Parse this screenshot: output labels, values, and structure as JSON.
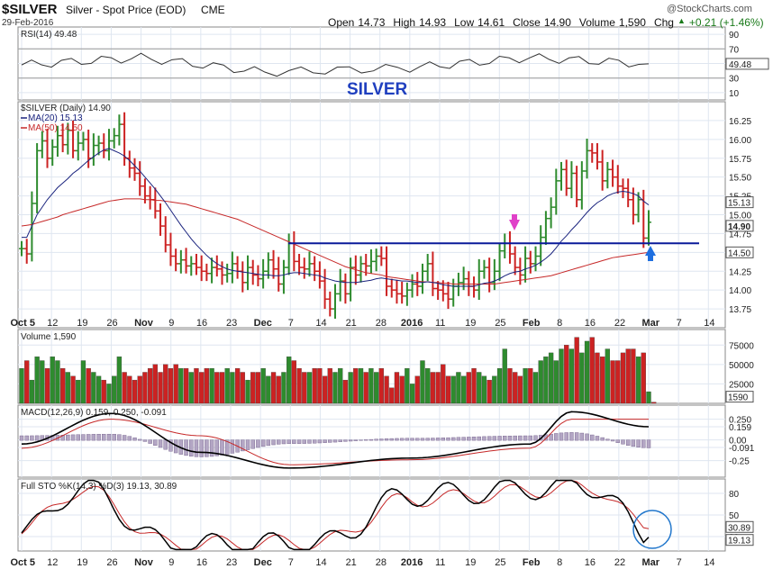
{
  "header": {
    "symbol": "$SILVER",
    "name": "Silver - Spot Price (EOD)",
    "exchange": "CME",
    "date": "29-Feb-2016",
    "watermark": "@StockCharts.com",
    "ohlc": [
      {
        "label": "Open",
        "value": "14.73"
      },
      {
        "label": "High",
        "value": "14.93"
      },
      {
        "label": "Low",
        "value": "14.61"
      },
      {
        "label": "Close",
        "value": "14.90"
      },
      {
        "label": "Volume",
        "value": "1,590"
      },
      {
        "label": "Chg",
        "value": "+0.21 (+1.46%)"
      }
    ],
    "change_arrow": "up-triangle-icon"
  },
  "annotation": {
    "title": "SILVER",
    "color": "#1f3fbf"
  },
  "colors": {
    "up": "#2e8b2e",
    "down": "#cc2222",
    "ma20": "#1a237e",
    "ma50": "#c62828",
    "hline": "#0a1a9a",
    "grid": "#dfe6f0",
    "panel_border": "#8a8a8a",
    "pink_arrow": "#e040c8",
    "blue_arrow": "#1e6fe0",
    "circle": "#2277cc"
  },
  "x_labels": [
    "Oct 5",
    "12",
    "19",
    "26",
    "Nov",
    "9",
    "16",
    "23",
    "Dec",
    "7",
    "14",
    "21",
    "28",
    "2016",
    "11",
    "19",
    "25",
    "Feb",
    "8",
    "16",
    "22",
    "Mar",
    "7",
    "14"
  ],
  "x_labels_bold": [
    "Oct 5",
    "Nov",
    "Dec",
    "2016",
    "Feb",
    "Mar"
  ],
  "chart_data": [
    {
      "type": "line",
      "panel": "rsi",
      "legend": "RSI(14) 49.48",
      "ylim": [
        0,
        100
      ],
      "ticks": [
        "90",
        "70",
        "50",
        "30",
        "10"
      ],
      "tick_values": [
        90,
        70,
        50,
        30,
        10
      ],
      "last_label": "49.48",
      "x": [
        "2015-10-05",
        "2015-11-02",
        "2015-12-01",
        "2016-01-04",
        "2016-02-01",
        "2016-02-29"
      ],
      "values": [
        48,
        58,
        38,
        44,
        58,
        49.48
      ]
    },
    {
      "type": "bar",
      "panel": "price",
      "legend": [
        "$SILVER (Daily) 14.90",
        "MA(20) 15.13",
        "MA(50) 14.50"
      ],
      "ylim": [
        13.5,
        16.5
      ],
      "ticks": [
        "16.25",
        "16.00",
        "15.75",
        "15.50",
        "15.25",
        "15.00",
        "14.75",
        "14.50",
        "14.25",
        "14.00",
        "13.75"
      ],
      "tick_values": [
        16.25,
        16.0,
        15.75,
        15.5,
        15.25,
        15.0,
        14.75,
        14.5,
        14.25,
        14.0,
        13.75
      ],
      "last_labels": [
        {
          "text": "15.13",
          "value": 15.13
        },
        {
          "text": "14.90",
          "value": 14.9
        },
        {
          "text": "14.50",
          "value": 14.5
        }
      ],
      "horizontal_line": 14.62,
      "close": [
        14.55,
        14.48,
        15.15,
        15.85,
        15.98,
        15.75,
        15.9,
        16.05,
        15.93,
        16.12,
        15.85,
        15.95,
        16.0,
        15.75,
        15.92,
        15.95,
        15.85,
        15.98,
        16.05,
        16.2,
        15.75,
        15.62,
        15.55,
        15.38,
        15.25,
        15.2,
        15.05,
        14.85,
        14.6,
        14.45,
        14.35,
        14.4,
        14.32,
        14.35,
        14.3,
        14.25,
        14.22,
        14.3,
        14.28,
        14.2,
        14.22,
        14.35,
        14.25,
        14.1,
        14.3,
        14.2,
        14.15,
        14.25,
        14.4,
        14.28,
        14.08,
        14.3,
        14.62,
        14.38,
        14.3,
        14.28,
        14.35,
        14.25,
        14.12,
        13.88,
        13.75,
        13.95,
        14.12,
        13.95,
        14.3,
        14.2,
        14.35,
        14.32,
        14.38,
        14.45,
        14.42,
        14.05,
        14.0,
        13.95,
        13.92,
        14.0,
        14.08,
        14.05,
        14.25,
        14.35,
        14.02,
        14.0,
        13.95,
        13.88,
        14.05,
        14.1,
        14.15,
        14.05,
        14.0,
        14.25,
        14.3,
        14.1,
        14.25,
        14.52,
        14.62,
        14.48,
        14.3,
        14.2,
        14.42,
        14.35,
        14.45,
        14.7,
        14.95,
        15.1,
        15.45,
        15.6,
        15.35,
        15.55,
        15.2,
        15.58,
        15.85,
        15.82,
        15.7,
        15.45,
        15.6,
        15.5,
        15.38,
        15.35,
        15.2,
        15.0,
        15.2,
        14.69,
        14.9
      ],
      "ma20": [
        14.7,
        14.7,
        14.85,
        15.0,
        15.1,
        15.2,
        15.28,
        15.36,
        15.42,
        15.48,
        15.55,
        15.6,
        15.66,
        15.72,
        15.77,
        15.82,
        15.86,
        15.88,
        15.85,
        15.82,
        15.78,
        15.72,
        15.65,
        15.58,
        15.5,
        15.42,
        15.34,
        15.25,
        15.16,
        15.06,
        14.96,
        14.86,
        14.77,
        14.68,
        14.6,
        14.53,
        14.46,
        14.4,
        14.35,
        14.31,
        14.28,
        14.26,
        14.25,
        14.24,
        14.23,
        14.22,
        14.21,
        14.2,
        14.2,
        14.19,
        14.19,
        14.2,
        14.22,
        14.23,
        14.23,
        14.22,
        14.21,
        14.2,
        14.19,
        14.16,
        14.14,
        14.12,
        14.11,
        14.1,
        14.1,
        14.1,
        14.11,
        14.12,
        14.13,
        14.15,
        14.16,
        14.15,
        14.14,
        14.13,
        14.12,
        14.12,
        14.11,
        14.1,
        14.1,
        14.11,
        14.1,
        14.09,
        14.07,
        14.06,
        14.05,
        14.05,
        14.05,
        14.05,
        14.05,
        14.07,
        14.09,
        14.1,
        14.12,
        14.15,
        14.19,
        14.22,
        14.24,
        14.25,
        14.28,
        14.3,
        14.33,
        14.37,
        14.42,
        14.48,
        14.56,
        14.65,
        14.72,
        14.8,
        14.87,
        14.95,
        15.03,
        15.1,
        15.16,
        15.2,
        15.25,
        15.28,
        15.3,
        15.31,
        15.3,
        15.28,
        15.25,
        15.18,
        15.13
      ],
      "ma50": [
        14.85,
        14.86,
        14.87,
        14.89,
        14.91,
        14.93,
        14.95,
        14.97,
        15.0,
        15.02,
        15.04,
        15.06,
        15.08,
        15.1,
        15.12,
        15.14,
        15.16,
        15.18,
        15.19,
        15.2,
        15.21,
        15.21,
        15.21,
        15.21,
        15.2,
        15.2,
        15.19,
        15.19,
        15.18,
        15.17,
        15.16,
        15.15,
        15.14,
        15.12,
        15.1,
        15.08,
        15.06,
        15.04,
        15.02,
        15.0,
        14.98,
        14.96,
        14.94,
        14.91,
        14.88,
        14.85,
        14.82,
        14.79,
        14.76,
        14.73,
        14.7,
        14.67,
        14.64,
        14.61,
        14.58,
        14.55,
        14.52,
        14.49,
        14.46,
        14.43,
        14.4,
        14.37,
        14.34,
        14.31,
        14.29,
        14.27,
        14.25,
        14.23,
        14.22,
        14.21,
        14.2,
        14.18,
        14.17,
        14.16,
        14.15,
        14.14,
        14.13,
        14.12,
        14.11,
        14.11,
        14.1,
        14.1,
        14.09,
        14.09,
        14.08,
        14.08,
        14.08,
        14.08,
        14.08,
        14.08,
        14.08,
        14.08,
        14.08,
        14.09,
        14.1,
        14.11,
        14.12,
        14.13,
        14.14,
        14.15,
        14.16,
        14.17,
        14.18,
        14.19,
        14.21,
        14.23,
        14.25,
        14.27,
        14.29,
        14.31,
        14.33,
        14.35,
        14.37,
        14.39,
        14.41,
        14.43,
        14.44,
        14.45,
        14.46,
        14.47,
        14.48,
        14.49,
        14.5
      ]
    },
    {
      "type": "bar",
      "panel": "volume",
      "legend": "Volume 1,590",
      "ylim": [
        0,
        95000
      ],
      "ticks": [
        "75000",
        "50000",
        "25000"
      ],
      "tick_values": [
        75000,
        50000,
        25000
      ],
      "last_label": "1590",
      "values": [
        45000,
        55000,
        30000,
        60000,
        55000,
        45000,
        60000,
        55000,
        45000,
        40000,
        35000,
        30000,
        55000,
        45000,
        40000,
        35000,
        30000,
        25000,
        35000,
        60000,
        40000,
        35000,
        30000,
        35000,
        40000,
        45000,
        50000,
        40000,
        50000,
        45000,
        50000,
        45000,
        45000,
        40000,
        45000,
        40000,
        45000,
        45000,
        40000,
        40000,
        45000,
        40000,
        45000,
        40000,
        30000,
        40000,
        40000,
        45000,
        35000,
        40000,
        35000,
        40000,
        60000,
        55000,
        45000,
        40000,
        40000,
        45000,
        45000,
        35000,
        45000,
        40000,
        45000,
        30000,
        40000,
        45000,
        45000,
        40000,
        45000,
        40000,
        45000,
        35000,
        20000,
        40000,
        35000,
        45000,
        25000,
        35000,
        55000,
        45000,
        40000,
        40000,
        50000,
        35000,
        35000,
        40000,
        35000,
        40000,
        45000,
        40000,
        35000,
        30000,
        35000,
        45000,
        70000,
        45000,
        40000,
        35000,
        45000,
        45000,
        40000,
        55000,
        60000,
        65000,
        55000,
        70000,
        75000,
        70000,
        85000,
        65000,
        80000,
        85000,
        65000,
        60000,
        70000,
        55000,
        55000,
        65000,
        70000,
        70000,
        60000,
        65000,
        15000,
        1590
      ]
    },
    {
      "type": "line",
      "panel": "macd",
      "legend": "MACD(12,26,9) 0.159, 0.250, -0.091",
      "ylim": [
        -0.45,
        0.42
      ],
      "ticks": [
        "0.250",
        "0.159",
        "0.00",
        "-0.091",
        "-0.25"
      ],
      "tick_values": [
        0.25,
        0.159,
        0.0,
        -0.091,
        -0.25
      ],
      "x": [
        "2015-10-05",
        "2015-10-26",
        "2015-11-16",
        "2015-12-07",
        "2016-01-04",
        "2016-02-01",
        "2016-02-11",
        "2016-02-29"
      ],
      "macd": [
        -0.05,
        0.32,
        -0.15,
        -0.34,
        -0.22,
        -0.05,
        0.34,
        0.159
      ],
      "signal": [
        -0.1,
        0.25,
        0.05,
        -0.3,
        -0.24,
        -0.1,
        0.25,
        0.25
      ],
      "histogram": [
        0.05,
        0.07,
        -0.2,
        -0.04,
        0.02,
        0.05,
        0.09,
        -0.091
      ]
    },
    {
      "type": "line",
      "panel": "stochastic",
      "legend": "Full STO %K(14,3) %D(3) 19.13, 30.89",
      "ylim": [
        0,
        100
      ],
      "ticks": [
        "80",
        "50",
        "20"
      ],
      "tick_values": [
        80,
        50,
        20
      ],
      "last_labels": [
        {
          "text": "30.89",
          "value": 30.89
        },
        {
          "text": "19.13",
          "value": 19.13
        }
      ],
      "x": [
        "2015-10-05",
        "2015-10-19",
        "2015-11-09",
        "2015-12-14",
        "2016-01-04",
        "2016-02-16",
        "2016-02-29"
      ],
      "k": [
        25,
        88,
        8,
        10,
        78,
        90,
        19.13
      ],
      "d": [
        30,
        85,
        10,
        12,
        72,
        88,
        30.89
      ]
    }
  ]
}
